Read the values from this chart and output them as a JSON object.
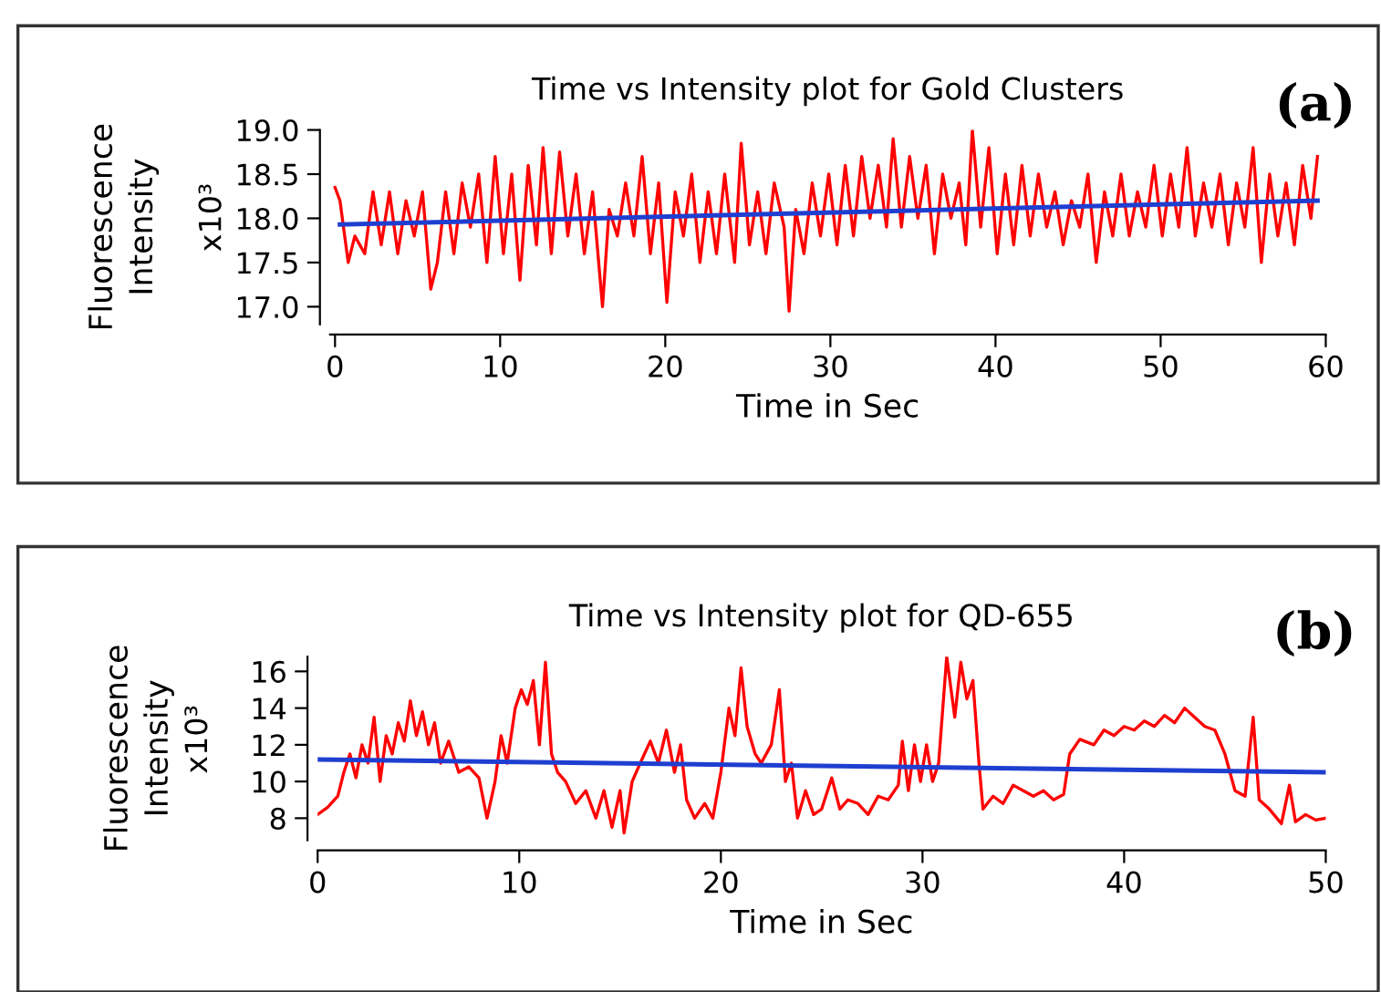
{
  "chart_data": [
    {
      "type": "line",
      "title": "Time vs Intensity plot for Gold Clusters",
      "xlabel": "Time in Sec",
      "ylabel": "Fluorescence\nIntensity",
      "annotations": [
        "(a)",
        "x10³"
      ],
      "xlim": [
        -0.3,
        60
      ],
      "ylim": [
        16.8,
        19.0
      ],
      "xticks": [
        0,
        10,
        20,
        30,
        40,
        50,
        60
      ],
      "yticks": [
        {
          "value": 17,
          "label": "17.0"
        },
        17.5,
        {
          "value": 18,
          "label": "18.0"
        },
        18.5,
        {
          "value": 19,
          "label": "19.0"
        }
      ],
      "series": [
        {
          "color": "#ff0000",
          "x": [
            0,
            0.3,
            0.8,
            1.2,
            1.8,
            2.3,
            2.8,
            3.3,
            3.8,
            4.3,
            4.8,
            5.3,
            5.8,
            6.2,
            6.7,
            7.2,
            7.7,
            8.2,
            8.7,
            9.2,
            9.7,
            10.2,
            10.7,
            11.2,
            11.7,
            12.2,
            12.6,
            13.1,
            13.6,
            14.1,
            14.6,
            15.1,
            15.6,
            16.2,
            16.6,
            17.1,
            17.6,
            18.1,
            18.6,
            19.1,
            19.6,
            20.1,
            20.6,
            21.1,
            21.6,
            22.1,
            22.6,
            23.1,
            23.6,
            24.2,
            24.6,
            25.1,
            25.6,
            26.1,
            26.6,
            27.2,
            27.5,
            27.9,
            28.4,
            28.9,
            29.4,
            29.9,
            30.4,
            30.9,
            31.4,
            31.9,
            32.4,
            32.9,
            33.4,
            33.8,
            34.3,
            34.8,
            35.3,
            35.8,
            36.3,
            36.8,
            37.3,
            37.8,
            38.2,
            38.6,
            39.1,
            39.6,
            40.1,
            40.6,
            41.1,
            41.6,
            42.1,
            42.6,
            43.1,
            43.6,
            44.1,
            44.6,
            45.1,
            45.6,
            46.1,
            46.6,
            47.1,
            47.6,
            48.1,
            48.6,
            49.1,
            49.6,
            50.1,
            50.6,
            51.1,
            51.6,
            52.1,
            52.6,
            53.1,
            53.6,
            54.1,
            54.6,
            55.1,
            55.6,
            56.1,
            56.6,
            57.1,
            57.6,
            58.1,
            58.6,
            59.1,
            59.5
          ],
          "values": [
            18.35,
            18.2,
            17.5,
            17.8,
            17.6,
            18.3,
            17.7,
            18.3,
            17.6,
            18.2,
            17.8,
            18.3,
            17.2,
            17.5,
            18.3,
            17.6,
            18.4,
            17.9,
            18.5,
            17.5,
            18.7,
            17.6,
            18.5,
            17.3,
            18.6,
            17.7,
            18.8,
            17.6,
            18.75,
            17.8,
            18.5,
            17.6,
            18.3,
            17.0,
            18.1,
            17.8,
            18.4,
            17.8,
            18.7,
            17.6,
            18.4,
            17.05,
            18.3,
            17.8,
            18.5,
            17.5,
            18.3,
            17.6,
            18.5,
            17.5,
            18.85,
            17.7,
            18.3,
            17.6,
            18.4,
            17.9,
            16.95,
            18.1,
            17.6,
            18.4,
            17.8,
            18.5,
            17.7,
            18.6,
            17.8,
            18.7,
            18.0,
            18.6,
            17.9,
            18.9,
            17.9,
            18.7,
            18.0,
            18.6,
            17.6,
            18.5,
            18.0,
            18.4,
            17.7,
            19.0,
            17.9,
            18.8,
            17.6,
            18.5,
            17.7,
            18.6,
            17.8,
            18.5,
            17.9,
            18.3,
            17.7,
            18.2,
            17.9,
            18.5,
            17.5,
            18.3,
            17.8,
            18.5,
            17.8,
            18.3,
            17.9,
            18.6,
            17.8,
            18.5,
            17.9,
            18.8,
            17.8,
            18.4,
            17.9,
            18.5,
            17.7,
            18.4,
            17.9,
            18.8,
            17.5,
            18.5,
            17.8,
            18.4,
            17.7,
            18.6,
            18.0,
            18.7
          ]
        },
        {
          "color": "#1f3fd0",
          "x": [
            0.3,
            59.5
          ],
          "values": [
            17.93,
            18.2
          ]
        }
      ]
    },
    {
      "type": "line",
      "title": "Time vs Intensity plot for QD-655",
      "xlabel": "Time in Sec",
      "ylabel": "Fluorescence\nIntensity",
      "annotations": [
        "(b)",
        "x10³"
      ],
      "xlim": [
        0,
        50
      ],
      "ylim": [
        6.8,
        16.8
      ],
      "xticks": [
        0,
        10,
        20,
        30,
        40,
        50
      ],
      "yticks": [
        8,
        10,
        12,
        14,
        16
      ],
      "series": [
        {
          "color": "#ff0000",
          "x": [
            0,
            0.5,
            1,
            1.3,
            1.6,
            1.9,
            2.2,
            2.5,
            2.8,
            3.1,
            3.4,
            3.7,
            4.0,
            4.3,
            4.6,
            4.9,
            5.2,
            5.5,
            5.8,
            6.1,
            6.5,
            7.0,
            7.5,
            8.0,
            8.4,
            8.8,
            9.1,
            9.4,
            9.8,
            10.1,
            10.4,
            10.7,
            11.0,
            11.3,
            11.6,
            11.9,
            12.3,
            12.8,
            13.3,
            13.8,
            14.2,
            14.6,
            15.0,
            15.2,
            15.6,
            16.0,
            16.5,
            16.9,
            17.3,
            17.7,
            18.0,
            18.3,
            18.7,
            19.2,
            19.6,
            20.0,
            20.4,
            20.7,
            21.0,
            21.3,
            21.7,
            22.0,
            22.5,
            22.9,
            23.2,
            23.5,
            23.8,
            24.2,
            24.6,
            25.0,
            25.5,
            25.9,
            26.3,
            26.8,
            27.3,
            27.8,
            28.3,
            28.8,
            29.0,
            29.3,
            29.6,
            29.9,
            30.2,
            30.5,
            30.8,
            31.2,
            31.6,
            31.9,
            32.2,
            32.5,
            32.8,
            33.0,
            33.5,
            34.0,
            34.5,
            35.0,
            35.5,
            36.0,
            36.5,
            37.0,
            37.3,
            37.8,
            38.5,
            39.0,
            39.5,
            40.0,
            40.5,
            41.0,
            41.5,
            42.0,
            42.5,
            43.0,
            43.5,
            44.0,
            44.5,
            45.0,
            45.5,
            46.0,
            46.4,
            46.7,
            47.2,
            47.8,
            48.2,
            48.5,
            49.0,
            49.5,
            50.0
          ],
          "values": [
            8.2,
            8.6,
            9.2,
            10.5,
            11.5,
            10.2,
            12.0,
            11.0,
            13.5,
            10.0,
            12.5,
            11.5,
            13.2,
            12.2,
            14.4,
            12.5,
            13.8,
            12.0,
            13.2,
            11.0,
            12.2,
            10.5,
            10.8,
            10.2,
            8.0,
            10.0,
            12.5,
            11.0,
            14.0,
            15.0,
            14.2,
            15.5,
            12.0,
            16.5,
            11.5,
            10.5,
            10.0,
            8.8,
            9.5,
            8.0,
            9.5,
            7.5,
            9.5,
            7.2,
            10.0,
            11.0,
            12.2,
            11.0,
            12.8,
            10.5,
            12.0,
            9.0,
            8.0,
            8.8,
            8.0,
            10.5,
            14.0,
            12.5,
            16.2,
            13.0,
            11.5,
            11.0,
            12.0,
            15.0,
            10.0,
            11.0,
            8.0,
            9.5,
            8.2,
            8.5,
            10.2,
            8.5,
            9.0,
            8.8,
            8.2,
            9.2,
            9.0,
            9.8,
            12.2,
            9.5,
            12.0,
            10.0,
            12.0,
            10.0,
            11.0,
            16.8,
            13.5,
            16.5,
            14.5,
            15.5,
            11.0,
            8.5,
            9.2,
            8.8,
            9.8,
            9.5,
            9.2,
            9.5,
            9.0,
            9.3,
            11.5,
            12.3,
            12.0,
            12.8,
            12.5,
            13.0,
            12.8,
            13.3,
            13.0,
            13.6,
            13.2,
            14.0,
            13.5,
            13.0,
            12.8,
            11.5,
            9.5,
            9.2,
            13.5,
            9.0,
            8.5,
            7.7,
            9.8,
            7.8,
            8.2,
            7.9,
            8.0
          ]
        },
        {
          "color": "#1f3fd0",
          "x": [
            0,
            50
          ],
          "values": [
            11.2,
            10.5
          ]
        }
      ]
    }
  ]
}
